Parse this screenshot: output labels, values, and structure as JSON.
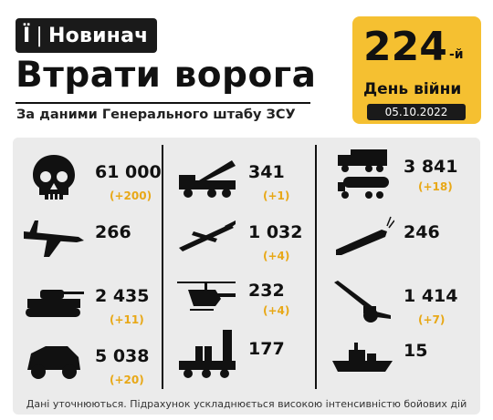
{
  "brand": {
    "letter": "Ї",
    "separator": "|",
    "name": "Новинач"
  },
  "title": "Втрати ворога",
  "subtitle": "За даними Генерального штабу ЗСУ",
  "day": {
    "number": "224",
    "suffix": "-й",
    "label": "День війни",
    "date": "05.10.2022"
  },
  "accent_color": "#f5c031",
  "delta_color": "#e8a817",
  "losses": [
    {
      "icon": "skull-icon",
      "value": "61 000",
      "delta": "(+200)"
    },
    {
      "icon": "rocket-launcher-icon",
      "value": "341",
      "delta": "(+1)"
    },
    {
      "icon": "fuel-truck-icon",
      "value": "3 841",
      "delta": "(+18)"
    },
    {
      "icon": "fighter-jet-icon",
      "value": "266",
      "delta": ""
    },
    {
      "icon": "drone-icon",
      "value": "1 032",
      "delta": "(+4)"
    },
    {
      "icon": "cruise-missile-icon",
      "value": "246",
      "delta": ""
    },
    {
      "icon": "tank-icon",
      "value": "2 435",
      "delta": "(+11)"
    },
    {
      "icon": "helicopter-icon",
      "value": "232",
      "delta": "(+4)"
    },
    {
      "icon": "artillery-icon",
      "value": "1 414",
      "delta": "(+7)"
    },
    {
      "icon": "armored-vehicle-icon",
      "value": "5 038",
      "delta": "(+20)"
    },
    {
      "icon": "air-defense-icon",
      "value": "177",
      "delta": ""
    },
    {
      "icon": "warship-icon",
      "value": "15",
      "delta": ""
    }
  ],
  "footer": "Дані уточнюються. Підрахунок ускладнюється високою інтенсивністю бойових дій"
}
